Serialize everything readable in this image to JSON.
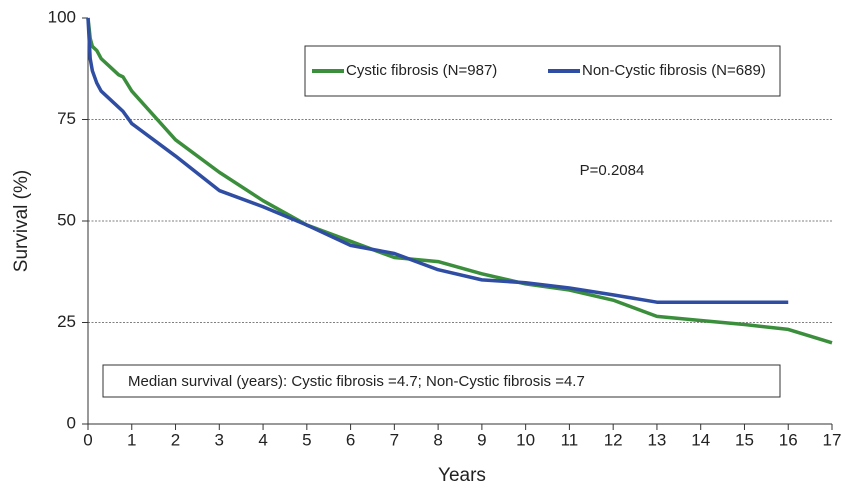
{
  "chart_data": {
    "type": "line",
    "xlabel": "Years",
    "ylabel": "Survival (%)",
    "x": [
      0,
      0.05,
      0.1,
      0.2,
      0.3,
      0.5,
      0.7,
      0.8,
      1,
      2,
      3,
      4,
      5,
      6,
      7,
      8,
      9,
      10,
      11,
      12,
      13,
      14,
      15,
      16,
      17
    ],
    "series": [
      {
        "name": "Cystic fibrosis (N=987)",
        "color": "#3b8e3b",
        "values": [
          100,
          95,
          93,
          92,
          90,
          88,
          86,
          85.5,
          82,
          70,
          62,
          55,
          49,
          45,
          41,
          40,
          37,
          34.5,
          33,
          30.5,
          26.5,
          25.5,
          24.5,
          23.3,
          20
        ]
      },
      {
        "name": "Non-Cystic fibrosis (N=689)",
        "color": "#2f4ea3",
        "values": [
          100,
          90,
          87,
          84,
          82,
          80,
          78,
          77,
          74,
          66,
          57.5,
          53.5,
          49,
          44,
          42,
          38,
          35.5,
          34.8,
          33.5,
          31.8,
          30,
          30,
          30,
          30,
          null
        ]
      }
    ],
    "xlim": [
      0,
      17
    ],
    "xticks": [
      0,
      1,
      2,
      3,
      4,
      5,
      6,
      7,
      8,
      9,
      10,
      11,
      12,
      13,
      14,
      15,
      16,
      17
    ],
    "ylim": [
      0,
      100
    ],
    "yticks": [
      0,
      25,
      50,
      75,
      100
    ],
    "grid": true,
    "annotations": [
      "P=0.2084",
      "Median survival (years): Cystic fibrosis =4.7; Non-Cystic fibrosis =4.7"
    ]
  }
}
